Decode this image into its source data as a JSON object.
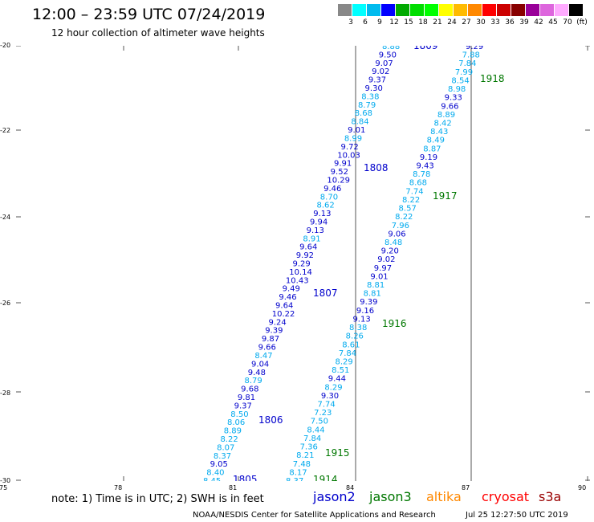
{
  "header": {
    "title": "12:00 – 23:59 UTC 07/24/2019",
    "subtitle": "12 hour collection of altimeter wave heights"
  },
  "scale": {
    "labels": [
      "3",
      "6",
      "9",
      "12",
      "15",
      "18",
      "21",
      "24",
      "27",
      "30",
      "33",
      "36",
      "39",
      "42",
      "45",
      "70",
      "(ft)"
    ],
    "colors": [
      "#888888",
      "#00ffff",
      "#00bbee",
      "#0000ff",
      "#00aa00",
      "#00dd00",
      "#00ff00",
      "#ffff00",
      "#ffbb00",
      "#ff8800",
      "#ff0000",
      "#cc0000",
      "#880000",
      "#990099",
      "#dd66dd",
      "#ffaaff",
      "#000000"
    ]
  },
  "axes": {
    "y_labels": [
      "-20",
      "-22",
      "-24",
      "-26",
      "-28",
      "-30"
    ],
    "x_labels": [
      "75",
      "78",
      "81",
      "84",
      "87",
      "90"
    ]
  },
  "tracks": [
    {
      "id": "1805",
      "color": "#0000cc",
      "label": "1805"
    },
    {
      "id": "1806",
      "color": "#0000cc",
      "label": "1806"
    },
    {
      "id": "1807",
      "color": "#0000cc",
      "label": "1807"
    },
    {
      "id": "1808",
      "color": "#0000cc",
      "label": "1808"
    },
    {
      "id": "1809",
      "color": "#0000cc",
      "label": "1809"
    },
    {
      "id": "1914",
      "color": "#007700",
      "label": "1914"
    },
    {
      "id": "1915",
      "color": "#007700",
      "label": "1915"
    },
    {
      "id": "1916",
      "color": "#007700",
      "label": "1916"
    },
    {
      "id": "1917",
      "color": "#007700",
      "label": "1917"
    },
    {
      "id": "1918",
      "color": "#007700",
      "label": "1918"
    }
  ],
  "track_a_values": [
    "8.88",
    "9.50",
    "9.07",
    "9.02",
    "9.37",
    "9.30",
    "8.38",
    "8.79",
    "8.68",
    "8.84",
    "9.01",
    "8.99",
    "9.72",
    "10.03",
    "9.91",
    "9.52",
    "10.29",
    "9.46",
    "8.70",
    "8.62",
    "9.13",
    "9.94",
    "9.13",
    "8.91",
    "9.64",
    "9.92",
    "9.29",
    "10.14",
    "10.43",
    "9.49",
    "9.46",
    "9.64",
    "10.22",
    "9.24",
    "9.39",
    "9.87",
    "9.66",
    "8.47",
    "9.04",
    "9.48",
    "8.79",
    "9.68",
    "9.81",
    "9.37",
    "8.50",
    "8.06",
    "8.89",
    "8.22",
    "8.07",
    "8.37",
    "9.05",
    "8.40",
    "8.45"
  ],
  "track_b_values": [
    "9.29",
    "7.88",
    "7.84",
    "7.99",
    "8.54",
    "8.98",
    "9.33",
    "9.66",
    "8.89",
    "8.42",
    "8.43",
    "8.49",
    "8.87",
    "9.19",
    "9.43",
    "8.78",
    "8.68",
    "7.74",
    "8.22",
    "8.57",
    "8.22",
    "7.96",
    "9.06",
    "8.48",
    "9.20",
    "9.02",
    "9.97",
    "9.01",
    "8.81",
    "8.81",
    "9.39",
    "9.16",
    "9.13",
    "8.38",
    "8.26",
    "8.61",
    "7.84",
    "8.29",
    "8.51",
    "9.44",
    "8.29",
    "9.30",
    "7.74",
    "7.23",
    "7.50",
    "8.44",
    "7.84",
    "7.36",
    "8.21",
    "7.48",
    "8.17",
    "8.37"
  ],
  "footer": {
    "note": "note:  1) Time is in UTC; 2) SWH is in feet",
    "legend": [
      {
        "name": "jason2",
        "color": "#0000cc"
      },
      {
        "name": "jason3",
        "color": "#007700"
      },
      {
        "name": "altika",
        "color": "#ff8800"
      },
      {
        "name": "cryosat",
        "color": "#ff0000"
      },
      {
        "name": "s3a",
        "color": "#990000"
      }
    ],
    "credit": "NOAA/NESDIS Center for Satellite Applications and Research",
    "timestamp": "Jul 25 12:27:50 UTC 2019"
  }
}
